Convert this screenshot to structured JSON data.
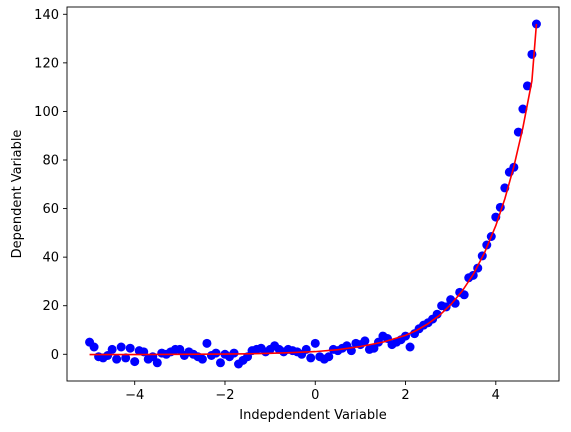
{
  "chart_data": {
    "type": "scatter",
    "title": "",
    "xlabel": "Indepdendent Variable",
    "ylabel": "Dependent Variable",
    "xlim": [
      -5.5,
      5.4
    ],
    "ylim": [
      -11,
      143
    ],
    "xticks": [
      -4,
      -2,
      0,
      2,
      4
    ],
    "xtick_labels": [
      "−4",
      "−2",
      "0",
      "2",
      "4"
    ],
    "yticks": [
      0,
      20,
      40,
      60,
      80,
      100,
      120,
      140
    ],
    "ytick_labels": [
      "0",
      "20",
      "40",
      "60",
      "80",
      "100",
      "120",
      "140"
    ],
    "grid": false,
    "legend": "none",
    "series": [
      {
        "kind": "scatter",
        "color": "#0000ff",
        "x": [
          -5.0,
          -4.9,
          -4.8,
          -4.7,
          -4.6,
          -4.5,
          -4.4,
          -4.3,
          -4.2,
          -4.1,
          -4.0,
          -3.9,
          -3.8,
          -3.7,
          -3.6,
          -3.5,
          -3.4,
          -3.3,
          -3.2,
          -3.1,
          -3.0,
          -2.9,
          -2.8,
          -2.7,
          -2.6,
          -2.5,
          -2.4,
          -2.3,
          -2.2,
          -2.1,
          -2.0,
          -1.9,
          -1.8,
          -1.7,
          -1.6,
          -1.5,
          -1.4,
          -1.3,
          -1.2,
          -1.1,
          -1.0,
          -0.9,
          -0.8,
          -0.7,
          -0.6,
          -0.5,
          -0.4,
          -0.3,
          -0.2,
          -0.1,
          0.0,
          0.1,
          0.2,
          0.3,
          0.4,
          0.5,
          0.6,
          0.7,
          0.8,
          0.9,
          1.0,
          1.1,
          1.2,
          1.3,
          1.4,
          1.5,
          1.6,
          1.7,
          1.8,
          1.9,
          2.0,
          2.1,
          2.2,
          2.3,
          2.4,
          2.5,
          2.6,
          2.7,
          2.8,
          2.9,
          3.0,
          3.1,
          3.2,
          3.3,
          3.4,
          3.5,
          3.6,
          3.7,
          3.8,
          3.9,
          4.0,
          4.1,
          4.2,
          4.3,
          4.4,
          4.5,
          4.6,
          4.7,
          4.8,
          4.9
        ],
        "y": [
          5.0,
          3.0,
          -1.0,
          -1.5,
          -0.5,
          2.0,
          -2.0,
          3.0,
          -1.5,
          2.5,
          -3.0,
          1.5,
          1.0,
          -2.0,
          -1.0,
          -3.5,
          0.5,
          0.0,
          1.0,
          2.0,
          2.0,
          -0.5,
          1.0,
          0.0,
          -1.0,
          -2.0,
          4.5,
          -0.5,
          0.5,
          -3.5,
          0.0,
          -1.0,
          0.5,
          -4.0,
          -2.5,
          -1.0,
          1.5,
          2.0,
          2.5,
          1.0,
          2.0,
          3.5,
          2.0,
          1.0,
          2.0,
          1.5,
          1.0,
          0.0,
          2.0,
          -1.5,
          4.5,
          -1.0,
          -2.0,
          -1.0,
          2.0,
          1.5,
          2.5,
          3.5,
          1.5,
          4.5,
          4.0,
          5.5,
          2.0,
          2.5,
          5.0,
          7.5,
          6.5,
          4.0,
          5.0,
          6.0,
          7.5,
          3.0,
          8.5,
          10.5,
          12.0,
          13.0,
          14.5,
          16.5,
          20.0,
          19.5,
          22.5,
          21.0,
          25.5,
          24.5,
          31.5,
          32.5,
          35.5,
          40.5,
          45.0,
          48.5,
          56.5,
          60.5,
          68.5,
          75.0,
          77.0,
          91.5,
          101.0,
          110.5,
          123.5,
          136.0
        ]
      },
      {
        "kind": "line",
        "color": "#ff0000",
        "fit": "exponential",
        "x": [
          -5.0,
          -4.0,
          -3.0,
          -2.0,
          -1.5,
          -1.0,
          -0.5,
          0.0,
          0.5,
          1.0,
          1.5,
          2.0,
          2.25,
          2.5,
          2.75,
          3.0,
          3.25,
          3.5,
          3.75,
          4.0,
          4.2,
          4.4,
          4.6,
          4.8,
          4.9
        ],
        "y": [
          -0.1,
          -0.1,
          0.0,
          0.1,
          0.2,
          0.4,
          0.7,
          1.1,
          1.9,
          3.2,
          5.0,
          7.8,
          9.9,
          12.6,
          16.0,
          20.4,
          25.9,
          32.9,
          41.8,
          53.0,
          64.0,
          77.3,
          93.3,
          112.6,
          136.0
        ]
      }
    ]
  }
}
